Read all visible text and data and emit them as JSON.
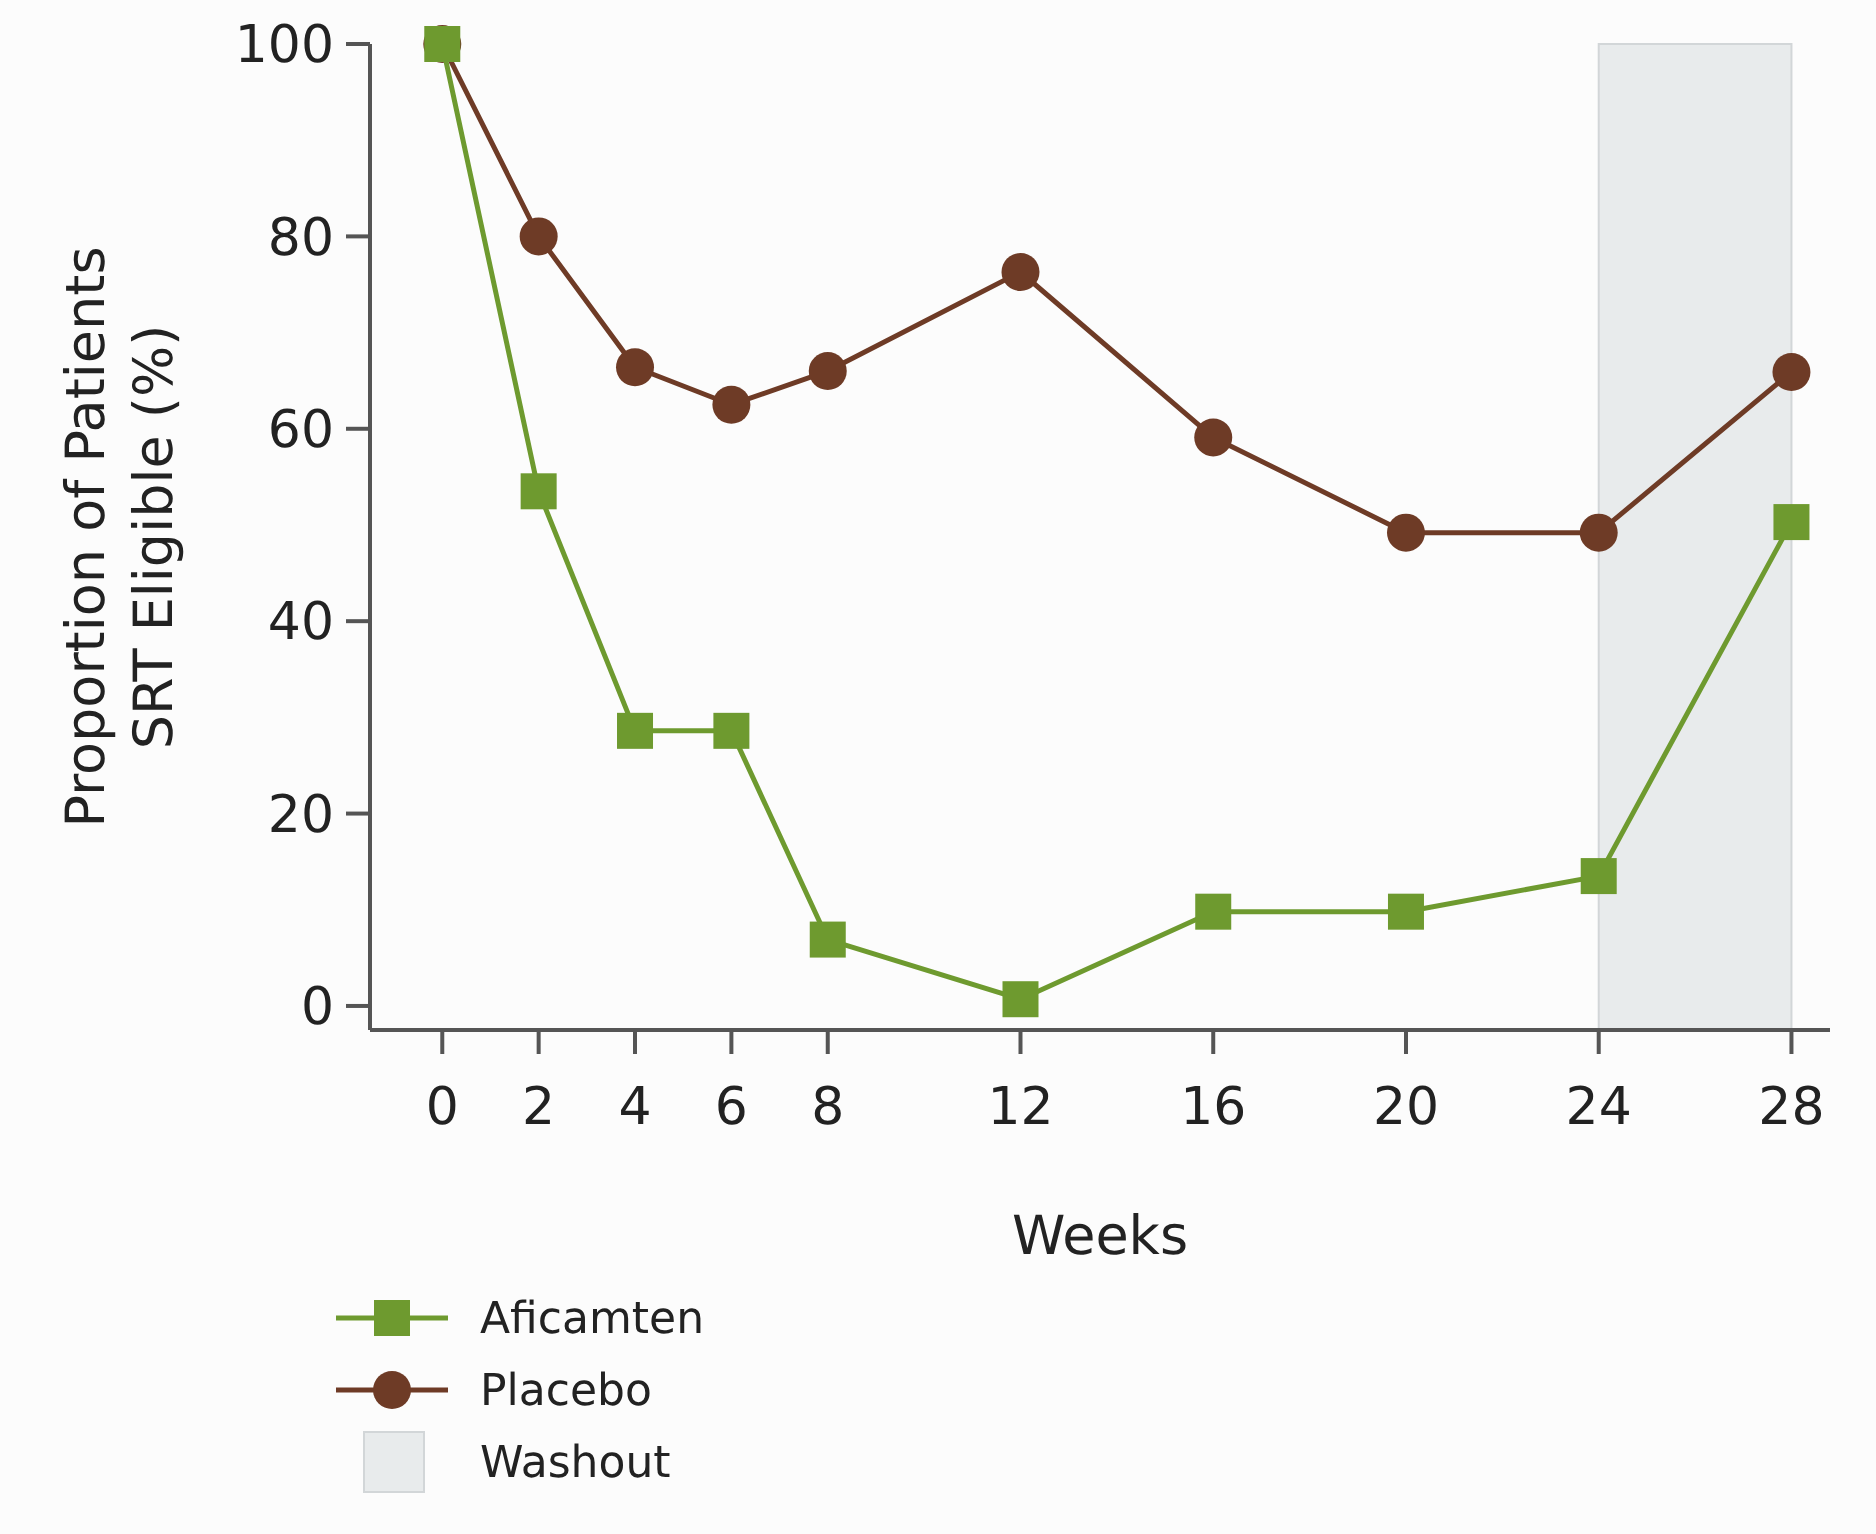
{
  "chart_data": {
    "type": "line",
    "xlabel": "Weeks",
    "ylabel": "Proportion of Patients\nSRT Eligible (%)",
    "x": [
      0,
      2,
      4,
      6,
      8,
      12,
      16,
      20,
      24,
      28
    ],
    "xlim": [
      -1.5,
      28.8
    ],
    "xticks": [
      0,
      2,
      4,
      6,
      8,
      12,
      16,
      20,
      24,
      28
    ],
    "ylim": [
      -2.5,
      100
    ],
    "yticks": [
      0,
      20,
      40,
      60,
      80,
      100
    ],
    "series": [
      {
        "name": "Aficamten",
        "color": "#6e9a2f",
        "marker": "square",
        "values": [
          100,
          53.5,
          28.6,
          28.6,
          6.9,
          0.7,
          9.8,
          9.8,
          13.5,
          50.3
        ]
      },
      {
        "name": "Placebo",
        "color": "#6e3b26",
        "marker": "circle",
        "values": [
          100,
          80,
          66.4,
          62.5,
          66,
          76.3,
          59.1,
          49.2,
          49.2,
          65.9
        ]
      }
    ],
    "bands": [
      {
        "axis": "x",
        "from": 24,
        "to": 28,
        "label": "Washout",
        "color": "#e8ebec"
      }
    ],
    "legend": "bottom left",
    "grid": false
  }
}
